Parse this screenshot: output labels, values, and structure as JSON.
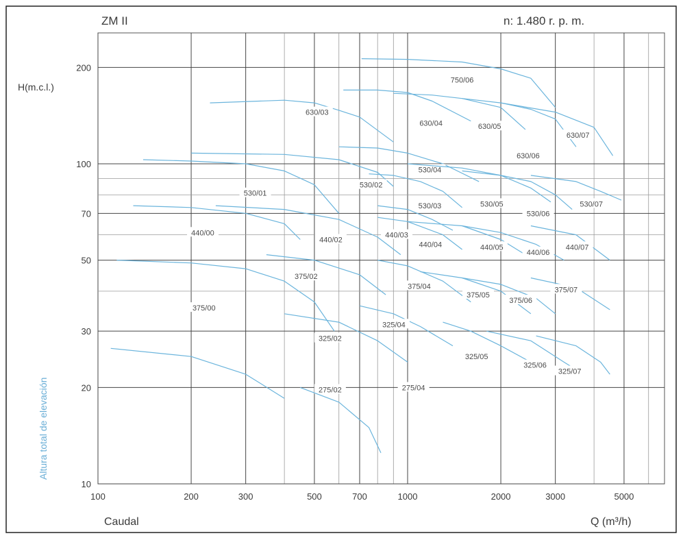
{
  "chart_data": {
    "type": "line",
    "title": "ZM II",
    "subtitle": "n: 1.480 r. p. m.",
    "xlabel_left": "Caudal",
    "xlabel_right": "Q (m³/h)",
    "ylabel_top": "H(m.c.l.)",
    "ylabel_side": "Altura total de elevación",
    "x_scale": "log",
    "y_scale": "log",
    "xlim": [
      100,
      8000
    ],
    "ylim": [
      10,
      260
    ],
    "grid": true,
    "x_major_ticks": [
      {
        "value": 100,
        "label": "100"
      },
      {
        "value": 200,
        "label": "200"
      },
      {
        "value": 300,
        "label": "300"
      },
      {
        "value": 500,
        "label": "500"
      },
      {
        "value": 700,
        "label": "700"
      },
      {
        "value": 1000,
        "label": "1000"
      },
      {
        "value": 2000,
        "label": "2000"
      },
      {
        "value": 3000,
        "label": "3000"
      },
      {
        "value": 5000,
        "label": "5000"
      }
    ],
    "x_minor_ticks": [
      400,
      600,
      800,
      900,
      4000,
      6000
    ],
    "y_major_ticks": [
      {
        "value": 10,
        "label": "10"
      },
      {
        "value": 20,
        "label": "20"
      },
      {
        "value": 30,
        "label": "30"
      },
      {
        "value": 50,
        "label": "50"
      },
      {
        "value": 70,
        "label": "70"
      },
      {
        "value": 100,
        "label": "100"
      },
      {
        "value": 200,
        "label": "200"
      }
    ],
    "y_minor_ticks": [
      40,
      60,
      80,
      90
    ],
    "series": [
      {
        "name": "750/06",
        "label_at": [
          1500,
          183
        ],
        "points": [
          [
            710,
            213
          ],
          [
            1000,
            212
          ],
          [
            1500,
            208
          ],
          [
            2000,
            198
          ],
          [
            2500,
            185
          ],
          [
            3000,
            150
          ]
        ]
      },
      {
        "name": "630/03",
        "label_at": [
          510,
          145
        ],
        "points": [
          [
            230,
            155
          ],
          [
            400,
            158
          ],
          [
            500,
            155
          ],
          [
            600,
            147
          ],
          [
            700,
            140
          ],
          [
            900,
            117
          ]
        ]
      },
      {
        "name": "630/04",
        "label_at": [
          1190,
          134
        ],
        "points": [
          [
            620,
            170
          ],
          [
            800,
            170
          ],
          [
            1000,
            167
          ],
          [
            1200,
            157
          ],
          [
            1600,
            136
          ]
        ]
      },
      {
        "name": "630/05",
        "label_at": [
          1840,
          131
        ],
        "points": [
          [
            900,
            166
          ],
          [
            1200,
            164
          ],
          [
            1500,
            160
          ],
          [
            2000,
            150
          ],
          [
            2400,
            128
          ]
        ]
      },
      {
        "name": "630/06",
        "label_at": [
          2450,
          106
        ],
        "points": [
          [
            1500,
            160
          ],
          [
            2000,
            155
          ],
          [
            2500,
            148
          ],
          [
            3000,
            138
          ],
          [
            3500,
            113
          ]
        ]
      },
      {
        "name": "630/07",
        "label_at": [
          3550,
          123
        ],
        "points": [
          [
            2000,
            155
          ],
          [
            3000,
            145
          ],
          [
            4000,
            130
          ],
          [
            4600,
            106
          ]
        ]
      },
      {
        "name": "530/01",
        "label_at": [
          322,
          81
        ],
        "points": [
          [
            140,
            103
          ],
          [
            200,
            102
          ],
          [
            300,
            100
          ],
          [
            400,
            95
          ],
          [
            500,
            86
          ],
          [
            600,
            70
          ]
        ]
      },
      {
        "name": "530/02",
        "label_at": [
          762,
          86
        ],
        "points": [
          [
            200,
            108
          ],
          [
            400,
            107
          ],
          [
            600,
            103
          ],
          [
            800,
            94
          ],
          [
            900,
            85
          ]
        ]
      },
      {
        "name": "530/03",
        "label_at": [
          1180,
          74
        ],
        "points": [
          [
            750,
            93
          ],
          [
            900,
            92
          ],
          [
            1100,
            88
          ],
          [
            1300,
            82
          ],
          [
            1500,
            73
          ]
        ]
      },
      {
        "name": "530/04",
        "label_at": [
          1180,
          96
        ],
        "points": [
          [
            600,
            113
          ],
          [
            800,
            112
          ],
          [
            1000,
            108
          ],
          [
            1300,
            100
          ],
          [
            1700,
            88
          ]
        ]
      },
      {
        "name": "530/05",
        "label_at": [
          1870,
          75
        ],
        "points": [
          [
            1000,
            100
          ],
          [
            1500,
            97
          ],
          [
            2000,
            92
          ],
          [
            2500,
            84
          ],
          [
            2900,
            76
          ]
        ]
      },
      {
        "name": "530/06",
        "label_at": [
          2640,
          70
        ],
        "points": [
          [
            1500,
            95
          ],
          [
            2000,
            92
          ],
          [
            2500,
            88
          ],
          [
            3000,
            80
          ],
          [
            3400,
            72
          ]
        ]
      },
      {
        "name": "530/07",
        "label_at": [
          3920,
          75
        ],
        "points": [
          [
            2500,
            92
          ],
          [
            3500,
            88
          ],
          [
            4200,
            82
          ],
          [
            4900,
            77
          ]
        ]
      },
      {
        "name": "440/00",
        "label_at": [
          218,
          61
        ],
        "points": [
          [
            130,
            74
          ],
          [
            200,
            73
          ],
          [
            300,
            70
          ],
          [
            400,
            65
          ],
          [
            450,
            58
          ]
        ]
      },
      {
        "name": "440/02",
        "label_at": [
          565,
          58
        ],
        "points": [
          [
            240,
            74
          ],
          [
            400,
            72
          ],
          [
            600,
            67
          ],
          [
            800,
            59
          ],
          [
            950,
            52
          ]
        ]
      },
      {
        "name": "440/03",
        "label_at": [
          922,
          60
        ],
        "points": [
          [
            800,
            74
          ],
          [
            1000,
            72
          ],
          [
            1200,
            67
          ],
          [
            1400,
            62
          ]
        ]
      },
      {
        "name": "440/04",
        "label_at": [
          1185,
          56
        ],
        "points": [
          [
            800,
            68
          ],
          [
            1000,
            66
          ],
          [
            1300,
            60
          ],
          [
            1500,
            54
          ]
        ]
      },
      {
        "name": "440/05",
        "label_at": [
          1870,
          55
        ],
        "points": [
          [
            1000,
            66
          ],
          [
            1500,
            64
          ],
          [
            2000,
            58
          ],
          [
            2400,
            52
          ]
        ]
      },
      {
        "name": "440/06",
        "label_at": [
          2640,
          53
        ],
        "points": [
          [
            1500,
            64
          ],
          [
            2000,
            61
          ],
          [
            2600,
            56
          ],
          [
            3200,
            50
          ]
        ]
      },
      {
        "name": "440/07",
        "label_at": [
          3530,
          55
        ],
        "points": [
          [
            2500,
            64
          ],
          [
            3500,
            60
          ],
          [
            4500,
            50
          ]
        ]
      },
      {
        "name": "375/00",
        "label_at": [
          220,
          35.5
        ],
        "points": [
          [
            115,
            50
          ],
          [
            200,
            49
          ],
          [
            300,
            47
          ],
          [
            400,
            43
          ],
          [
            500,
            37
          ],
          [
            580,
            30
          ]
        ]
      },
      {
        "name": "375/02",
        "label_at": [
          470,
          44.5
        ],
        "points": [
          [
            350,
            52
          ],
          [
            500,
            50
          ],
          [
            700,
            45
          ],
          [
            850,
            39
          ]
        ]
      },
      {
        "name": "375/04",
        "label_at": [
          1090,
          41.5
        ],
        "points": [
          [
            800,
            50
          ],
          [
            1000,
            48
          ],
          [
            1300,
            43
          ],
          [
            1600,
            37
          ]
        ]
      },
      {
        "name": "375/05",
        "label_at": [
          1690,
          39
        ],
        "points": [
          [
            1100,
            46
          ],
          [
            1500,
            44
          ],
          [
            2000,
            40
          ],
          [
            2500,
            34
          ]
        ]
      },
      {
        "name": "375/06",
        "label_at": [
          2320,
          37.5
        ],
        "points": [
          [
            1500,
            44
          ],
          [
            2000,
            42
          ],
          [
            2600,
            38
          ],
          [
            3000,
            34
          ]
        ]
      },
      {
        "name": "375/07",
        "label_at": [
          3250,
          40.5
        ],
        "points": [
          [
            2500,
            44
          ],
          [
            3500,
            41
          ],
          [
            4500,
            35
          ]
        ]
      },
      {
        "name": "325/02",
        "label_at": [
          562,
          28.5
        ],
        "points": [
          [
            400,
            34
          ],
          [
            600,
            32
          ],
          [
            800,
            28
          ],
          [
            1000,
            24
          ]
        ]
      },
      {
        "name": "325/04",
        "label_at": [
          903,
          31.5
        ],
        "points": [
          [
            700,
            36
          ],
          [
            900,
            34
          ],
          [
            1100,
            31
          ],
          [
            1400,
            27
          ]
        ]
      },
      {
        "name": "325/05",
        "label_at": [
          1670,
          25
        ],
        "points": [
          [
            1300,
            32
          ],
          [
            1600,
            30
          ],
          [
            2000,
            27
          ],
          [
            2500,
            24
          ]
        ]
      },
      {
        "name": "325/06",
        "label_at": [
          2580,
          23.5
        ],
        "points": [
          [
            1800,
            30
          ],
          [
            2500,
            28
          ],
          [
            3200,
            24
          ],
          [
            3700,
            22
          ]
        ]
      },
      {
        "name": "325/07",
        "label_at": [
          3340,
          22.5
        ],
        "points": [
          [
            2600,
            29
          ],
          [
            3500,
            27
          ],
          [
            4200,
            24
          ],
          [
            4500,
            22
          ]
        ]
      },
      {
        "name": "275/02",
        "label_at": [
          562,
          19.7
        ],
        "points": [
          [
            110,
            26.5
          ],
          [
            200,
            25
          ],
          [
            300,
            22
          ],
          [
            400,
            18.5
          ]
        ]
      },
      {
        "name": "275/04",
        "label_at": [
          1045,
          20
        ],
        "points": [
          [
            450,
            20
          ],
          [
            600,
            18
          ],
          [
            750,
            15
          ],
          [
            820,
            12.5
          ]
        ]
      }
    ]
  }
}
